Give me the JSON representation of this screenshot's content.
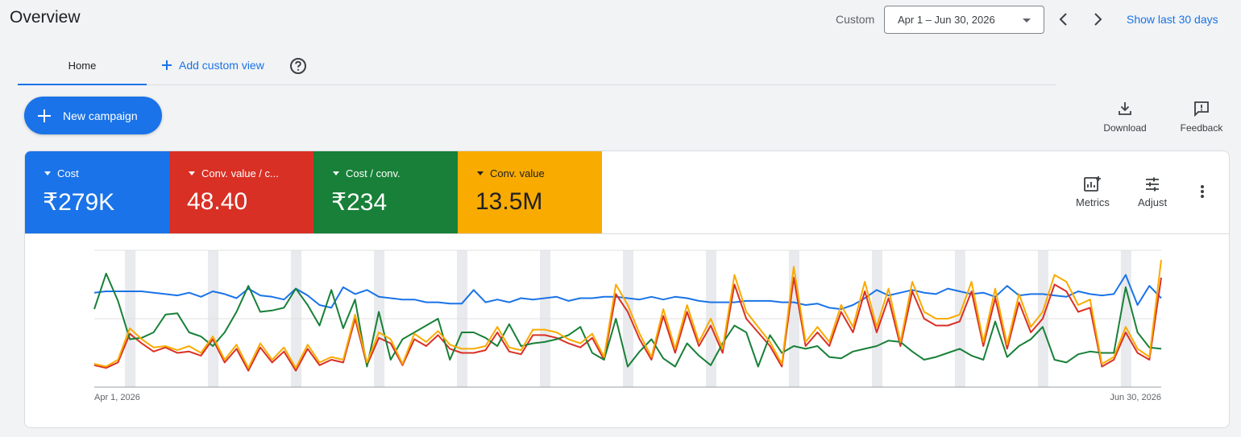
{
  "header": {
    "title": "Overview",
    "custom_label": "Custom",
    "date_range": "Apr 1 – Jun 30, 2026",
    "show_last": "Show last 30 days"
  },
  "tabs": {
    "home": "Home",
    "add_custom_view": "Add custom view"
  },
  "actions": {
    "new_campaign": "New campaign",
    "download": "Download",
    "feedback": "Feedback"
  },
  "tiles": [
    {
      "name": "Cost",
      "value": "₹279K",
      "color": "#1a73e8"
    },
    {
      "name": "Conv. value / c...",
      "value": "48.40",
      "color": "#d93025"
    },
    {
      "name": "Cost / conv.",
      "value": "₹234",
      "color": "#188038"
    },
    {
      "name": "Conv. value",
      "value": "13.5M",
      "color": "#f9ab00"
    }
  ],
  "card_tools": {
    "metrics": "Metrics",
    "adjust": "Adjust"
  },
  "chart_data": {
    "type": "line",
    "x_start_label": "Apr 1, 2026",
    "x_end_label": "Jun 30, 2026",
    "days": 91,
    "series": [
      {
        "name": "Cost",
        "color": "#1a73e8",
        "values": [
          0.69,
          0.7,
          0.7,
          0.7,
          0.7,
          0.69,
          0.68,
          0.67,
          0.69,
          0.66,
          0.7,
          0.68,
          0.65,
          0.72,
          0.67,
          0.66,
          0.64,
          0.72,
          0.67,
          0.6,
          0.58,
          0.73,
          0.68,
          0.71,
          0.66,
          0.65,
          0.64,
          0.64,
          0.62,
          0.62,
          0.61,
          0.61,
          0.71,
          0.62,
          0.64,
          0.62,
          0.65,
          0.64,
          0.65,
          0.66,
          0.63,
          0.65,
          0.65,
          0.66,
          0.66,
          0.65,
          0.64,
          0.66,
          0.64,
          0.66,
          0.65,
          0.63,
          0.62,
          0.62,
          0.62,
          0.63,
          0.63,
          0.63,
          0.62,
          0.62,
          0.6,
          0.61,
          0.58,
          0.57,
          0.6,
          0.65,
          0.71,
          0.67,
          0.69,
          0.71,
          0.69,
          0.68,
          0.72,
          0.7,
          0.68,
          0.69,
          0.66,
          0.74,
          0.67,
          0.68,
          0.68,
          0.67,
          0.66,
          0.7,
          0.68,
          0.67,
          0.68,
          0.82,
          0.6,
          0.74,
          0.65
        ]
      },
      {
        "name": "Conv. value / c...",
        "color": "#d93025",
        "values": [
          0.16,
          0.14,
          0.18,
          0.39,
          0.32,
          0.26,
          0.29,
          0.25,
          0.26,
          0.23,
          0.35,
          0.18,
          0.28,
          0.12,
          0.29,
          0.18,
          0.26,
          0.12,
          0.28,
          0.16,
          0.2,
          0.18,
          0.5,
          0.16,
          0.36,
          0.32,
          0.16,
          0.35,
          0.3,
          0.38,
          0.28,
          0.25,
          0.25,
          0.27,
          0.4,
          0.26,
          0.24,
          0.38,
          0.38,
          0.36,
          0.32,
          0.29,
          0.36,
          0.2,
          0.68,
          0.55,
          0.35,
          0.2,
          0.52,
          0.25,
          0.55,
          0.3,
          0.45,
          0.25,
          0.75,
          0.5,
          0.4,
          0.3,
          0.15,
          0.8,
          0.3,
          0.4,
          0.3,
          0.55,
          0.4,
          0.7,
          0.4,
          0.65,
          0.3,
          0.7,
          0.5,
          0.45,
          0.45,
          0.48,
          0.7,
          0.3,
          0.65,
          0.28,
          0.62,
          0.4,
          0.5,
          0.75,
          0.7,
          0.55,
          0.58,
          0.15,
          0.2,
          0.4,
          0.25,
          0.2,
          0.8
        ]
      },
      {
        "name": "Cost / conv.",
        "color": "#188038",
        "values": [
          0.57,
          0.83,
          0.63,
          0.35,
          0.36,
          0.4,
          0.53,
          0.54,
          0.4,
          0.37,
          0.3,
          0.4,
          0.55,
          0.74,
          0.55,
          0.56,
          0.58,
          0.72,
          0.6,
          0.45,
          0.71,
          0.43,
          0.64,
          0.15,
          0.55,
          0.2,
          0.35,
          0.4,
          0.45,
          0.5,
          0.2,
          0.4,
          0.4,
          0.36,
          0.3,
          0.46,
          0.3,
          0.32,
          0.33,
          0.35,
          0.38,
          0.44,
          0.25,
          0.2,
          0.5,
          0.15,
          0.26,
          0.35,
          0.21,
          0.15,
          0.32,
          0.23,
          0.16,
          0.32,
          0.45,
          0.4,
          0.15,
          0.38,
          0.25,
          0.3,
          0.28,
          0.3,
          0.22,
          0.21,
          0.26,
          0.28,
          0.3,
          0.34,
          0.33,
          0.26,
          0.2,
          0.22,
          0.25,
          0.28,
          0.23,
          0.2,
          0.48,
          0.22,
          0.3,
          0.35,
          0.44,
          0.2,
          0.18,
          0.24,
          0.26,
          0.25,
          0.25,
          0.73,
          0.4,
          0.29,
          0.28
        ]
      },
      {
        "name": "Conv. value",
        "color": "#f9ab00",
        "values": [
          0.17,
          0.15,
          0.2,
          0.43,
          0.35,
          0.29,
          0.3,
          0.27,
          0.3,
          0.25,
          0.37,
          0.2,
          0.31,
          0.14,
          0.32,
          0.2,
          0.29,
          0.14,
          0.31,
          0.18,
          0.22,
          0.2,
          0.53,
          0.18,
          0.4,
          0.35,
          0.17,
          0.39,
          0.33,
          0.41,
          0.31,
          0.28,
          0.28,
          0.3,
          0.44,
          0.29,
          0.27,
          0.42,
          0.42,
          0.4,
          0.35,
          0.32,
          0.39,
          0.22,
          0.75,
          0.6,
          0.39,
          0.22,
          0.57,
          0.28,
          0.6,
          0.33,
          0.5,
          0.28,
          0.82,
          0.55,
          0.44,
          0.33,
          0.17,
          0.88,
          0.33,
          0.44,
          0.33,
          0.6,
          0.44,
          0.77,
          0.44,
          0.72,
          0.33,
          0.77,
          0.55,
          0.5,
          0.5,
          0.53,
          0.77,
          0.33,
          0.72,
          0.31,
          0.68,
          0.44,
          0.55,
          0.82,
          0.77,
          0.6,
          0.64,
          0.17,
          0.22,
          0.44,
          0.28,
          0.22,
          0.93
        ]
      }
    ]
  }
}
